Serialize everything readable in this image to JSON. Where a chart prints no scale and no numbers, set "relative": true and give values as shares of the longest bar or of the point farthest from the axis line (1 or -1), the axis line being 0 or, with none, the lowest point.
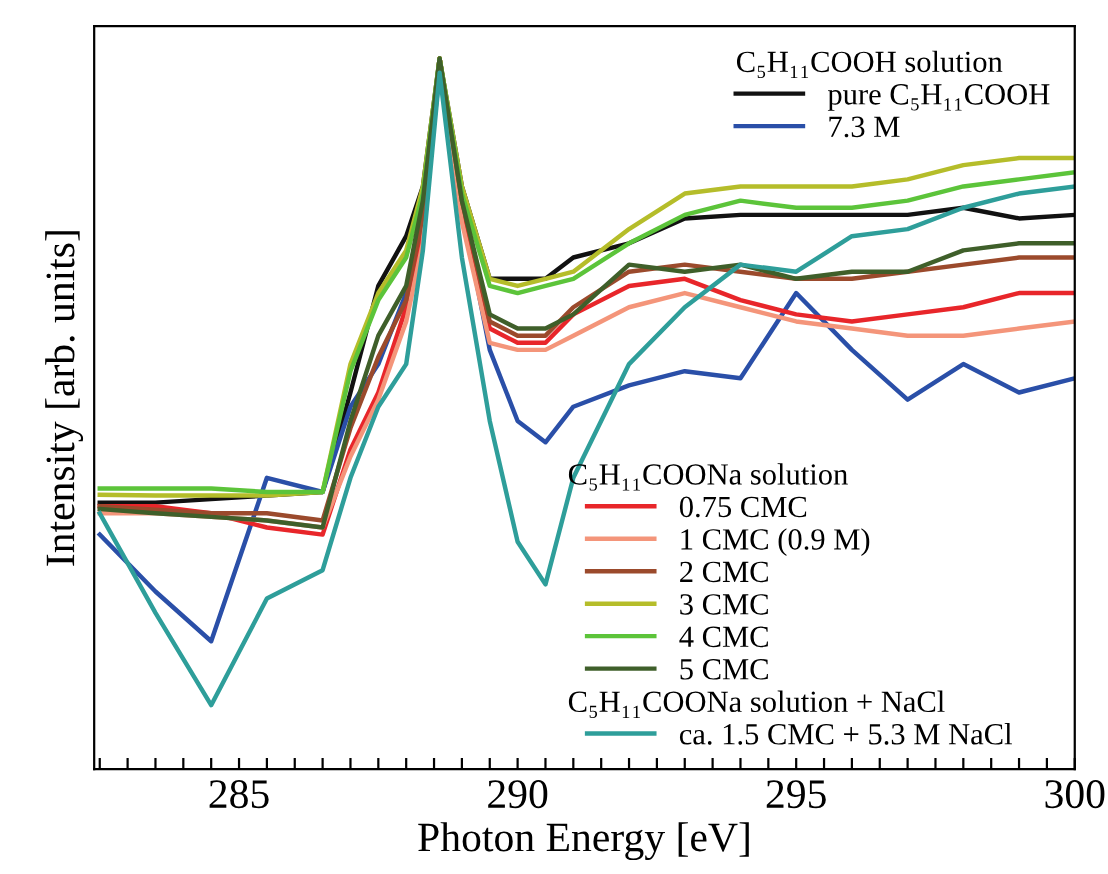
{
  "chart_data": {
    "type": "line",
    "relative": true,
    "xlabel": "Photon Energy [eV]",
    "ylabel": "Intensity [arb. units]",
    "legend_title": "C₅H₁₁COOH solution",
    "annotations": [
      "C₅H₁₁COONa solution",
      "C₅H₁₁COONa solution + NaCl"
    ],
    "legend": "right",
    "grid": false,
    "xlim": [
      282.4,
      300
    ],
    "xticks": [
      {
        "value": 282.5,
        "label": null
      },
      {
        "value": 283,
        "label": null
      },
      {
        "value": 283.5,
        "label": null
      },
      {
        "value": 284,
        "label": null
      },
      {
        "value": 284.5,
        "label": null
      },
      285,
      {
        "value": 285.5,
        "label": null
      },
      {
        "value": 286,
        "label": null
      },
      {
        "value": 286.5,
        "label": null
      },
      {
        "value": 287,
        "label": null
      },
      {
        "value": 287.5,
        "label": null
      },
      {
        "value": 288,
        "label": null
      },
      {
        "value": 288.5,
        "label": null
      },
      {
        "value": 289,
        "label": null
      },
      {
        "value": 289.5,
        "label": null
      },
      290,
      {
        "value": 290.5,
        "label": null
      },
      {
        "value": 291,
        "label": null
      },
      {
        "value": 291.5,
        "label": null
      },
      {
        "value": 292,
        "label": null
      },
      {
        "value": 292.5,
        "label": null
      },
      {
        "value": 293,
        "label": null
      },
      {
        "value": 293.5,
        "label": null
      },
      {
        "value": 294,
        "label": null
      },
      {
        "value": 294.5,
        "label": null
      },
      295,
      {
        "value": 295.5,
        "label": null
      },
      {
        "value": 296,
        "label": null
      },
      {
        "value": 296.5,
        "label": null
      },
      {
        "value": 297,
        "label": null
      },
      {
        "value": 297.5,
        "label": null
      },
      {
        "value": 298,
        "label": null
      },
      {
        "value": 298.5,
        "label": null
      },
      {
        "value": 299,
        "label": null
      },
      {
        "value": 299.5,
        "label": null
      },
      300
    ],
    "x": [
      282.5,
      283.5,
      284.5,
      285.5,
      286.5,
      287,
      287.5,
      288,
      288.3,
      288.6,
      289,
      289.5,
      290,
      290.5,
      291,
      292,
      293,
      294,
      295,
      296,
      297,
      298,
      299,
      300
    ],
    "series": [
      {
        "name": "pure C₅H₁₁COOH",
        "color": "#111111",
        "values": [
          0.375,
          0.375,
          0.38,
          0.385,
          0.39,
          0.53,
          0.68,
          0.75,
          0.82,
          1.0,
          0.82,
          0.69,
          0.69,
          0.69,
          0.72,
          0.74,
          0.775,
          0.78,
          0.78,
          0.78,
          0.78,
          0.79,
          0.775,
          0.78
        ]
      },
      {
        "name": "7.3 M",
        "color": "#2a4fa8",
        "values": [
          0.33,
          0.25,
          0.18,
          0.41,
          0.39,
          0.51,
          0.57,
          0.67,
          0.77,
          0.98,
          0.79,
          0.59,
          0.49,
          0.46,
          0.51,
          0.54,
          0.56,
          0.55,
          0.67,
          0.59,
          0.52,
          0.57,
          0.53,
          0.55
        ]
      },
      {
        "name": "0.75 CMC",
        "color": "#e8262a",
        "values": [
          0.37,
          0.37,
          0.36,
          0.34,
          0.33,
          0.45,
          0.53,
          0.65,
          0.75,
          1.0,
          0.78,
          0.62,
          0.6,
          0.6,
          0.64,
          0.68,
          0.69,
          0.66,
          0.64,
          0.63,
          0.64,
          0.65,
          0.67,
          0.67
        ]
      },
      {
        "name": "1 CMC (0.9 M)",
        "color": "#f4957a",
        "values": [
          0.36,
          0.36,
          0.355,
          0.35,
          0.34,
          0.44,
          0.52,
          0.63,
          0.74,
          1.0,
          0.77,
          0.6,
          0.59,
          0.59,
          0.61,
          0.65,
          0.67,
          0.65,
          0.63,
          0.62,
          0.61,
          0.61,
          0.62,
          0.63
        ]
      },
      {
        "name": "2 CMC",
        "color": "#9b4a2c",
        "values": [
          0.37,
          0.365,
          0.36,
          0.36,
          0.35,
          0.48,
          0.58,
          0.66,
          0.78,
          1.0,
          0.8,
          0.63,
          0.61,
          0.61,
          0.65,
          0.7,
          0.71,
          0.7,
          0.69,
          0.69,
          0.7,
          0.71,
          0.72,
          0.72
        ]
      },
      {
        "name": "3 CMC",
        "color": "#b5bd2a",
        "values": [
          0.386,
          0.385,
          0.385,
          0.385,
          0.39,
          0.57,
          0.67,
          0.73,
          0.82,
          1.0,
          0.82,
          0.69,
          0.68,
          0.69,
          0.7,
          0.76,
          0.81,
          0.82,
          0.82,
          0.82,
          0.83,
          0.85,
          0.86,
          0.86
        ]
      },
      {
        "name": "4 CMC",
        "color": "#5cc43a",
        "values": [
          0.395,
          0.395,
          0.395,
          0.39,
          0.39,
          0.56,
          0.66,
          0.72,
          0.81,
          1.0,
          0.81,
          0.68,
          0.67,
          0.68,
          0.69,
          0.74,
          0.78,
          0.8,
          0.79,
          0.79,
          0.8,
          0.82,
          0.83,
          0.84
        ]
      },
      {
        "name": "5 CMC",
        "color": "#3f5f2a",
        "values": [
          0.366,
          0.36,
          0.355,
          0.35,
          0.34,
          0.49,
          0.61,
          0.68,
          0.8,
          1.0,
          0.8,
          0.64,
          0.62,
          0.62,
          0.64,
          0.71,
          0.7,
          0.71,
          0.69,
          0.7,
          0.7,
          0.73,
          0.74,
          0.74
        ]
      },
      {
        "name": "ca. 1.5 CMC + 5.3 M NaCl",
        "color": "#2e9e9a",
        "values": [
          0.36,
          0.22,
          0.09,
          0.24,
          0.28,
          0.41,
          0.51,
          0.57,
          0.73,
          0.98,
          0.72,
          0.49,
          0.32,
          0.26,
          0.41,
          0.57,
          0.65,
          0.71,
          0.7,
          0.75,
          0.76,
          0.79,
          0.81,
          0.82
        ]
      }
    ]
  }
}
